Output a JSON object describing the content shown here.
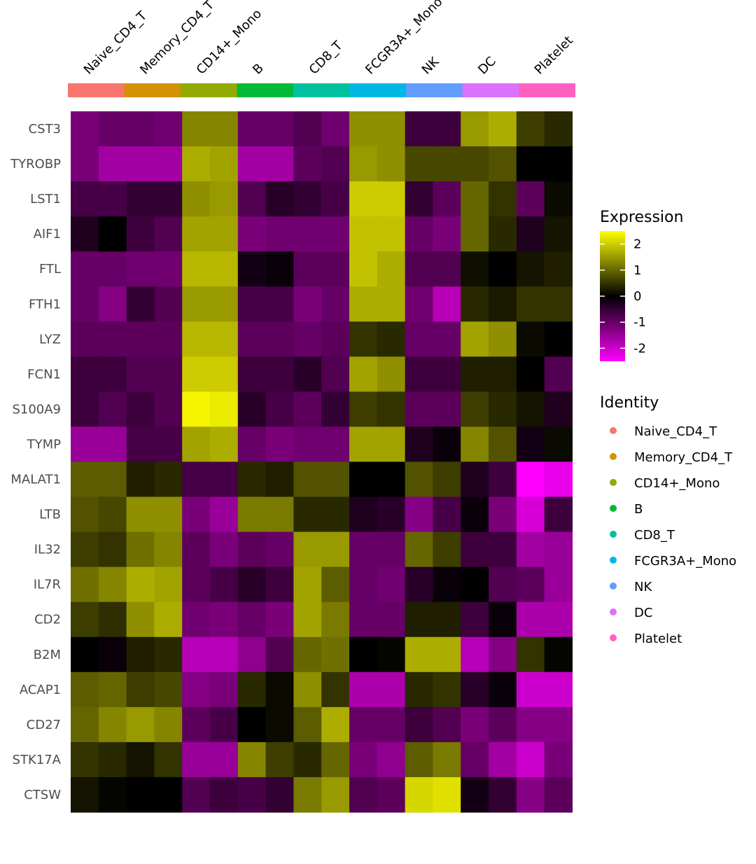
{
  "chart_data": {
    "type": "heatmap",
    "identities": [
      "Naive_CD4_T",
      "Memory_CD4_T",
      "CD14+_Mono",
      "B",
      "CD8_T",
      "FCGR3A+_Mono",
      "NK",
      "DC",
      "Platelet"
    ],
    "identity_colors": [
      "#F8766D",
      "#D39200",
      "#93AA00",
      "#00BA38",
      "#00C19F",
      "#00B9E3",
      "#619CFF",
      "#DB72FB",
      "#FF61C3"
    ],
    "genes": [
      "CST3",
      "TYROBP",
      "LST1",
      "AIF1",
      "FTL",
      "FTH1",
      "LYZ",
      "FCN1",
      "S100A9",
      "TYMP",
      "MALAT1",
      "LTB",
      "IL32",
      "IL7R",
      "CD2",
      "B2M",
      "ACAP1",
      "CD27",
      "STK17A",
      "CTSW"
    ],
    "cells_per_identity": 2,
    "values": [
      [
        -1.2,
        -1.0,
        -1.0,
        -1.1,
        1.3,
        1.3,
        -1.0,
        -1.0,
        -0.8,
        -1.1,
        1.4,
        1.4,
        -0.6,
        -0.6,
        1.5,
        1.7,
        0.6,
        0.4
      ],
      [
        -1.2,
        -1.6,
        -1.6,
        -1.6,
        1.7,
        1.6,
        -1.6,
        -1.6,
        -0.9,
        -0.8,
        1.5,
        1.4,
        0.7,
        0.7,
        0.7,
        0.8,
        0.0,
        0.0
      ],
      [
        -0.7,
        -0.7,
        -0.5,
        -0.5,
        1.4,
        1.5,
        -0.8,
        -0.4,
        -0.5,
        -0.7,
        2.0,
        2.0,
        -0.5,
        -0.9,
        1.0,
        0.5,
        -0.9,
        0.1
      ],
      [
        -0.3,
        0.0,
        -0.6,
        -0.8,
        1.6,
        1.6,
        -1.2,
        -1.1,
        -1.1,
        -1.1,
        1.9,
        1.9,
        -1.0,
        -1.2,
        1.0,
        0.4,
        -0.3,
        0.2
      ],
      [
        -1.0,
        -1.0,
        -1.1,
        -1.1,
        1.8,
        1.8,
        -0.2,
        -0.1,
        -0.9,
        -0.9,
        1.9,
        1.7,
        -0.8,
        -0.8,
        0.15,
        0.0,
        0.2,
        0.3
      ],
      [
        -1.0,
        -1.3,
        -0.5,
        -0.8,
        1.5,
        1.5,
        -0.7,
        -0.7,
        -1.2,
        -1.0,
        1.7,
        1.7,
        -1.1,
        -1.8,
        0.4,
        0.25,
        0.5,
        0.5
      ],
      [
        -0.9,
        -0.9,
        -0.9,
        -0.9,
        1.8,
        1.8,
        -0.9,
        -0.9,
        -1.0,
        -0.9,
        0.5,
        0.4,
        -1.0,
        -1.0,
        1.6,
        1.4,
        0.1,
        0.0
      ],
      [
        -0.6,
        -0.6,
        -0.8,
        -0.8,
        2.0,
        2.0,
        -0.6,
        -0.6,
        -0.4,
        -0.8,
        1.6,
        1.4,
        -0.6,
        -0.6,
        0.3,
        0.3,
        0.0,
        -0.8
      ],
      [
        -0.6,
        -0.8,
        -0.6,
        -0.8,
        2.4,
        2.3,
        -0.4,
        -0.7,
        -0.9,
        -0.5,
        0.6,
        0.5,
        -0.9,
        -0.9,
        0.6,
        0.4,
        0.2,
        -0.3
      ],
      [
        -1.5,
        -1.5,
        -0.7,
        -0.7,
        1.6,
        1.7,
        -1.0,
        -1.2,
        -1.1,
        -1.1,
        1.6,
        1.6,
        -0.3,
        -0.1,
        1.3,
        0.8,
        -0.2,
        0.1
      ],
      [
        0.9,
        0.9,
        0.3,
        0.4,
        -0.7,
        -0.7,
        0.4,
        0.3,
        0.8,
        0.8,
        0.0,
        0.0,
        0.8,
        0.6,
        -0.3,
        -0.6,
        -2.6,
        -2.3
      ],
      [
        0.8,
        0.7,
        1.4,
        1.4,
        -1.2,
        -1.5,
        1.2,
        1.2,
        0.4,
        0.4,
        -0.3,
        -0.4,
        -1.3,
        -0.7,
        -0.1,
        -1.2,
        -2.1,
        -0.6
      ],
      [
        0.6,
        0.5,
        1.1,
        1.3,
        -0.9,
        -1.2,
        -0.9,
        -1.0,
        1.5,
        1.5,
        -1.0,
        -1.0,
        1.0,
        0.6,
        -0.6,
        -0.6,
        -1.6,
        -1.5
      ],
      [
        1.1,
        1.3,
        1.7,
        1.6,
        -0.9,
        -0.7,
        -0.4,
        -0.6,
        1.6,
        0.9,
        -1.0,
        -1.1,
        -0.4,
        -0.1,
        0.0,
        -0.8,
        -0.9,
        -1.5
      ],
      [
        0.6,
        0.45,
        1.4,
        1.7,
        -1.1,
        -1.2,
        -1.0,
        -1.2,
        1.6,
        1.2,
        -1.0,
        -1.0,
        0.3,
        0.3,
        -0.6,
        -0.1,
        -1.7,
        -1.7
      ],
      [
        0.0,
        -0.1,
        0.3,
        0.4,
        -1.8,
        -1.8,
        -1.4,
        -0.8,
        1.0,
        1.1,
        0.0,
        0.05,
        1.7,
        1.7,
        -1.8,
        -1.3,
        0.5,
        0.05
      ],
      [
        0.9,
        1.0,
        0.6,
        0.7,
        -1.3,
        -1.2,
        0.4,
        0.1,
        1.4,
        0.5,
        -1.7,
        -1.7,
        0.4,
        0.5,
        -0.4,
        -0.1,
        -2.0,
        -2.0
      ],
      [
        1.0,
        1.3,
        1.5,
        1.3,
        -0.9,
        -0.7,
        0.0,
        0.1,
        0.9,
        1.7,
        -1.0,
        -1.0,
        -0.6,
        -0.8,
        -1.2,
        -0.9,
        -1.3,
        -1.3
      ],
      [
        0.5,
        0.4,
        0.2,
        0.5,
        -1.5,
        -1.5,
        1.3,
        0.6,
        0.4,
        1.0,
        -1.2,
        -1.4,
        0.9,
        1.2,
        -1.0,
        -1.6,
        -2.0,
        -1.2
      ],
      [
        0.2,
        0.05,
        0.0,
        0.0,
        -0.8,
        -0.6,
        -0.7,
        -0.5,
        1.2,
        1.5,
        -0.8,
        -0.9,
        2.1,
        2.2,
        -0.2,
        -0.5,
        -1.3,
        -0.9
      ]
    ],
    "color_scale": {
      "low": "#FF00FF",
      "mid": "#000000",
      "high": "#FFFF00",
      "domain": [
        -2.5,
        0,
        2.5
      ]
    },
    "legend": {
      "expression_title": "Expression",
      "expression_ticks": [
        "2",
        "1",
        "0",
        "-1",
        "-2"
      ],
      "identity_title": "Identity",
      "position": "right"
    }
  }
}
